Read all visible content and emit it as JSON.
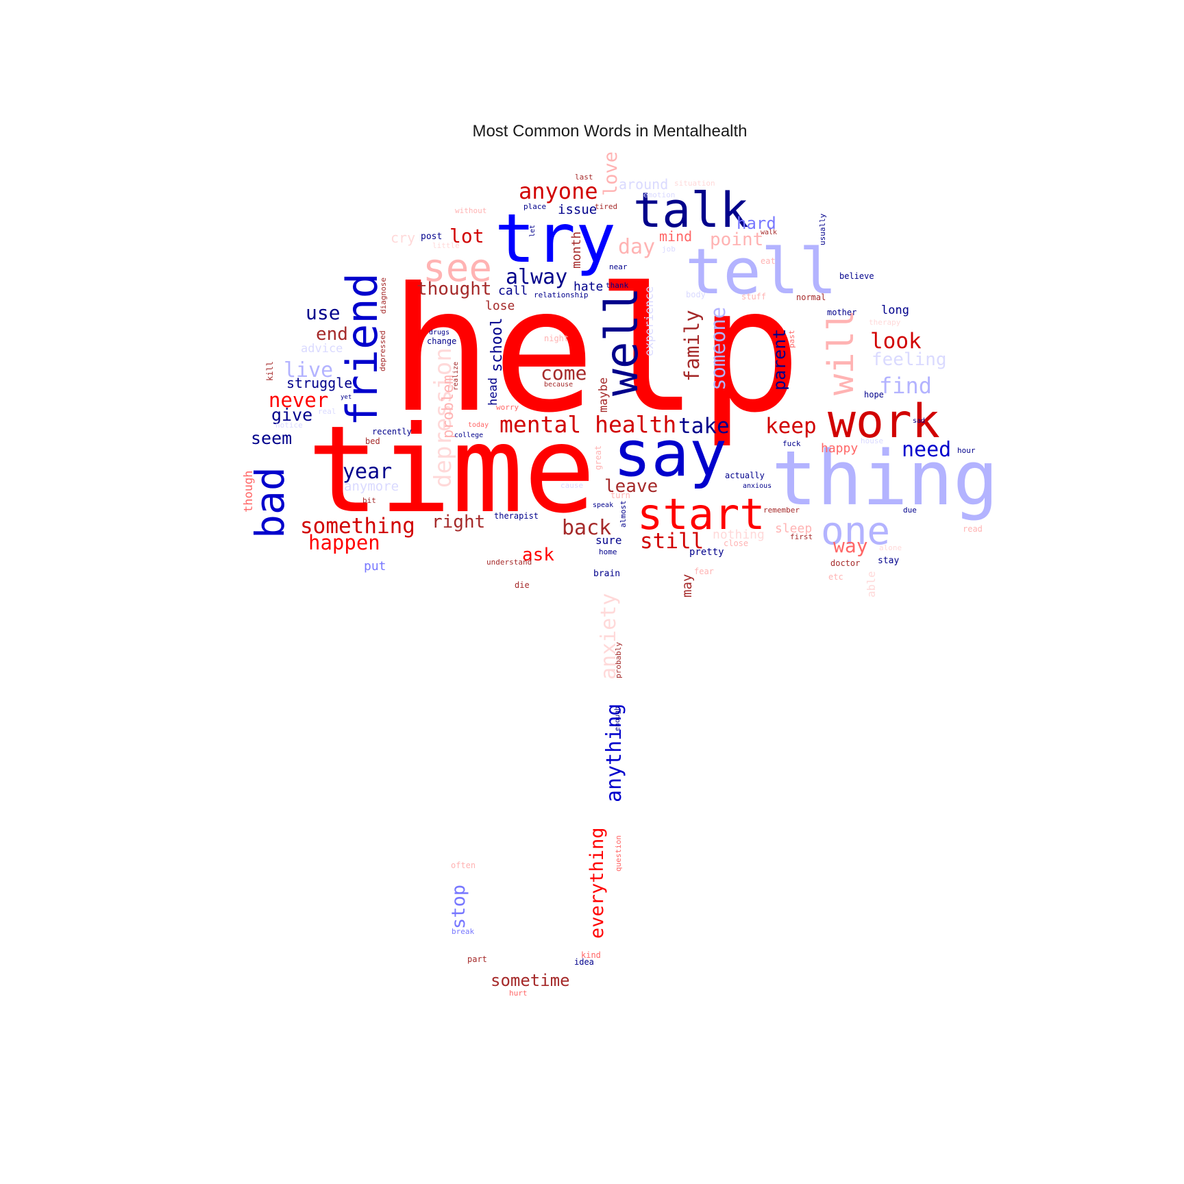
{
  "title": "Most Common Words in Mentalhealth",
  "palette": {
    "red": "#ff0000",
    "darkred": "#d10000",
    "brown": "#a52a2a",
    "salmon": "#ff6666",
    "pink": "#ffb3b3",
    "lightpink": "#ffd9d9",
    "blue": "#0000ff",
    "mblue": "#0000cc",
    "navy": "#00008b",
    "periwinkle": "#7777ff",
    "lightblue": "#b3b3ff",
    "paleblue": "#dadaff"
  },
  "words": [
    {
      "text": "help",
      "color": "red"
    },
    {
      "text": "time",
      "color": "red"
    },
    {
      "text": "thing",
      "color": "lightblue"
    },
    {
      "text": "tell",
      "color": "lightblue"
    },
    {
      "text": "say",
      "color": "mblue"
    },
    {
      "text": "try",
      "color": "blue"
    },
    {
      "text": "talk",
      "color": "navy"
    },
    {
      "text": "work",
      "color": "darkred"
    },
    {
      "text": "start",
      "color": "red"
    },
    {
      "text": "friend",
      "color": "mblue"
    },
    {
      "text": "well",
      "color": "navy"
    },
    {
      "text": "see",
      "color": "pink"
    },
    {
      "text": "one",
      "color": "lightblue"
    },
    {
      "text": "bad",
      "color": "mblue"
    },
    {
      "text": "will",
      "color": "pink"
    },
    {
      "text": "depression",
      "color": "lightpink"
    },
    {
      "text": "mental health",
      "color": "darkred"
    },
    {
      "text": "something",
      "color": "darkred"
    },
    {
      "text": "anyone",
      "color": "darkred"
    },
    {
      "text": "year",
      "color": "navy"
    },
    {
      "text": "keep",
      "color": "darkred"
    },
    {
      "text": "take",
      "color": "navy"
    },
    {
      "text": "still",
      "color": "darkred"
    },
    {
      "text": "back",
      "color": "brown"
    },
    {
      "text": "happen",
      "color": "red"
    },
    {
      "text": "look",
      "color": "darkred"
    },
    {
      "text": "find",
      "color": "lightblue"
    },
    {
      "text": "need",
      "color": "mblue"
    },
    {
      "text": "never",
      "color": "red"
    },
    {
      "text": "alway",
      "color": "navy"
    },
    {
      "text": "lot",
      "color": "darkred"
    },
    {
      "text": "thought",
      "color": "brown"
    },
    {
      "text": "day",
      "color": "pink"
    },
    {
      "text": "someone",
      "color": "lightblue"
    },
    {
      "text": "family",
      "color": "brown"
    },
    {
      "text": "parent",
      "color": "navy"
    },
    {
      "text": "come",
      "color": "brown"
    },
    {
      "text": "leave",
      "color": "brown"
    },
    {
      "text": "right",
      "color": "brown"
    },
    {
      "text": "ask",
      "color": "red"
    },
    {
      "text": "way",
      "color": "salmon"
    },
    {
      "text": "love",
      "color": "pink"
    },
    {
      "text": "feeling",
      "color": "paleblue"
    },
    {
      "text": "hard",
      "color": "periwinkle"
    },
    {
      "text": "use",
      "color": "navy"
    },
    {
      "text": "end",
      "color": "brown"
    },
    {
      "text": "live",
      "color": "lightblue"
    },
    {
      "text": "give",
      "color": "navy"
    },
    {
      "text": "seem",
      "color": "navy"
    },
    {
      "text": "struggle",
      "color": "navy"
    },
    {
      "text": "school",
      "color": "navy"
    },
    {
      "text": "problem",
      "color": "pink"
    },
    {
      "text": "point",
      "color": "pink"
    },
    {
      "text": "around",
      "color": "paleblue"
    },
    {
      "text": "issue",
      "color": "navy"
    },
    {
      "text": "anything",
      "color": "mblue"
    },
    {
      "text": "everything",
      "color": "red"
    },
    {
      "text": "anxiety",
      "color": "lightpink"
    },
    {
      "text": "sometime",
      "color": "brown"
    },
    {
      "text": "stop",
      "color": "periwinkle"
    },
    {
      "text": "experience",
      "color": "paleblue"
    },
    {
      "text": "maybe",
      "color": "brown"
    },
    {
      "text": "head",
      "color": "navy"
    },
    {
      "text": "month",
      "color": "brown"
    },
    {
      "text": "cry",
      "color": "lightpink"
    },
    {
      "text": "mind",
      "color": "salmon"
    },
    {
      "text": "lose",
      "color": "brown"
    },
    {
      "text": "hate",
      "color": "navy"
    },
    {
      "text": "call",
      "color": "navy"
    },
    {
      "text": "advice",
      "color": "paleblue"
    },
    {
      "text": "anymore",
      "color": "paleblue"
    },
    {
      "text": "though",
      "color": "salmon"
    },
    {
      "text": "happy",
      "color": "salmon"
    },
    {
      "text": "sleep",
      "color": "pink"
    },
    {
      "text": "nothing",
      "color": "lightpink"
    },
    {
      "text": "put",
      "color": "periwinkle"
    },
    {
      "text": "may",
      "color": "brown"
    },
    {
      "text": "able",
      "color": "lightpink"
    },
    {
      "text": "sure",
      "color": "navy"
    },
    {
      "text": "pretty",
      "color": "navy"
    },
    {
      "text": "doctor",
      "color": "brown"
    },
    {
      "text": "stay",
      "color": "navy"
    },
    {
      "text": "long",
      "color": "navy"
    },
    {
      "text": "post",
      "color": "navy"
    },
    {
      "text": "last",
      "color": "brown"
    },
    {
      "text": "situation",
      "color": "lightpink"
    },
    {
      "text": "emotion",
      "color": "paleblue"
    },
    {
      "text": "without",
      "color": "pink"
    },
    {
      "text": "place",
      "color": "navy"
    },
    {
      "text": "tired",
      "color": "brown"
    },
    {
      "text": "little",
      "color": "lightpink"
    },
    {
      "text": "job",
      "color": "paleblue"
    },
    {
      "text": "near",
      "color": "navy"
    },
    {
      "text": "thank",
      "color": "navy"
    },
    {
      "text": "relationship",
      "color": "navy"
    },
    {
      "text": "body",
      "color": "paleblue"
    },
    {
      "text": "stuff",
      "color": "pink"
    },
    {
      "text": "normal",
      "color": "brown"
    },
    {
      "text": "mother",
      "color": "navy"
    },
    {
      "text": "believe",
      "color": "navy"
    },
    {
      "text": "usually",
      "color": "navy"
    },
    {
      "text": "eat",
      "color": "pink"
    },
    {
      "text": "therapy",
      "color": "lightpink"
    },
    {
      "text": "night",
      "color": "pink"
    },
    {
      "text": "change",
      "color": "navy"
    },
    {
      "text": "drugs",
      "color": "navy"
    },
    {
      "text": "recently",
      "color": "navy"
    },
    {
      "text": "today",
      "color": "salmon"
    },
    {
      "text": "college",
      "color": "navy"
    },
    {
      "text": "worry",
      "color": "salmon"
    },
    {
      "text": "bed",
      "color": "brown"
    },
    {
      "text": "great",
      "color": "pink"
    },
    {
      "text": "almost",
      "color": "navy"
    },
    {
      "text": "speak",
      "color": "navy"
    },
    {
      "text": "turn",
      "color": "pink"
    },
    {
      "text": "therapist",
      "color": "navy"
    },
    {
      "text": "home",
      "color": "navy"
    },
    {
      "text": "brain",
      "color": "navy"
    },
    {
      "text": "understand",
      "color": "brown"
    },
    {
      "text": "die",
      "color": "brown"
    },
    {
      "text": "bit",
      "color": "brown"
    },
    {
      "text": "kill",
      "color": "brown"
    },
    {
      "text": "actually",
      "color": "navy"
    },
    {
      "text": "anxious",
      "color": "navy"
    },
    {
      "text": "remember",
      "color": "brown"
    },
    {
      "text": "first",
      "color": "brown"
    },
    {
      "text": "close",
      "color": "pink"
    },
    {
      "text": "fear",
      "color": "pink"
    },
    {
      "text": "etc",
      "color": "pink"
    },
    {
      "text": "due",
      "color": "navy"
    },
    {
      "text": "house",
      "color": "paleblue"
    },
    {
      "text": "hour",
      "color": "navy"
    },
    {
      "text": "read",
      "color": "pink"
    },
    {
      "text": "alone",
      "color": "lightpink"
    },
    {
      "text": "hope",
      "color": "navy"
    },
    {
      "text": "sad",
      "color": "navy"
    },
    {
      "text": "fuck",
      "color": "navy"
    },
    {
      "text": "past",
      "color": "salmon"
    },
    {
      "text": "often",
      "color": "pink"
    },
    {
      "text": "break",
      "color": "periwinkle"
    },
    {
      "text": "part",
      "color": "brown"
    },
    {
      "text": "kind",
      "color": "salmon"
    },
    {
      "text": "idea",
      "color": "navy"
    },
    {
      "text": "hurt",
      "color": "salmon"
    },
    {
      "text": "question",
      "color": "salmon"
    },
    {
      "text": "enough",
      "color": "navy"
    },
    {
      "text": "probably",
      "color": "brown"
    },
    {
      "text": "because",
      "color": "brown"
    },
    {
      "text": "realize",
      "color": "brown"
    },
    {
      "text": "diagnose",
      "color": "brown"
    },
    {
      "text": "depressed",
      "color": "brown"
    },
    {
      "text": "notice",
      "color": "paleblue"
    },
    {
      "text": "real",
      "color": "paleblue"
    },
    {
      "text": "yet",
      "color": "navy"
    },
    {
      "text": "let",
      "color": "navy"
    },
    {
      "text": "cause",
      "color": "paleblue"
    },
    {
      "text": "walk",
      "color": "brown"
    }
  ]
}
